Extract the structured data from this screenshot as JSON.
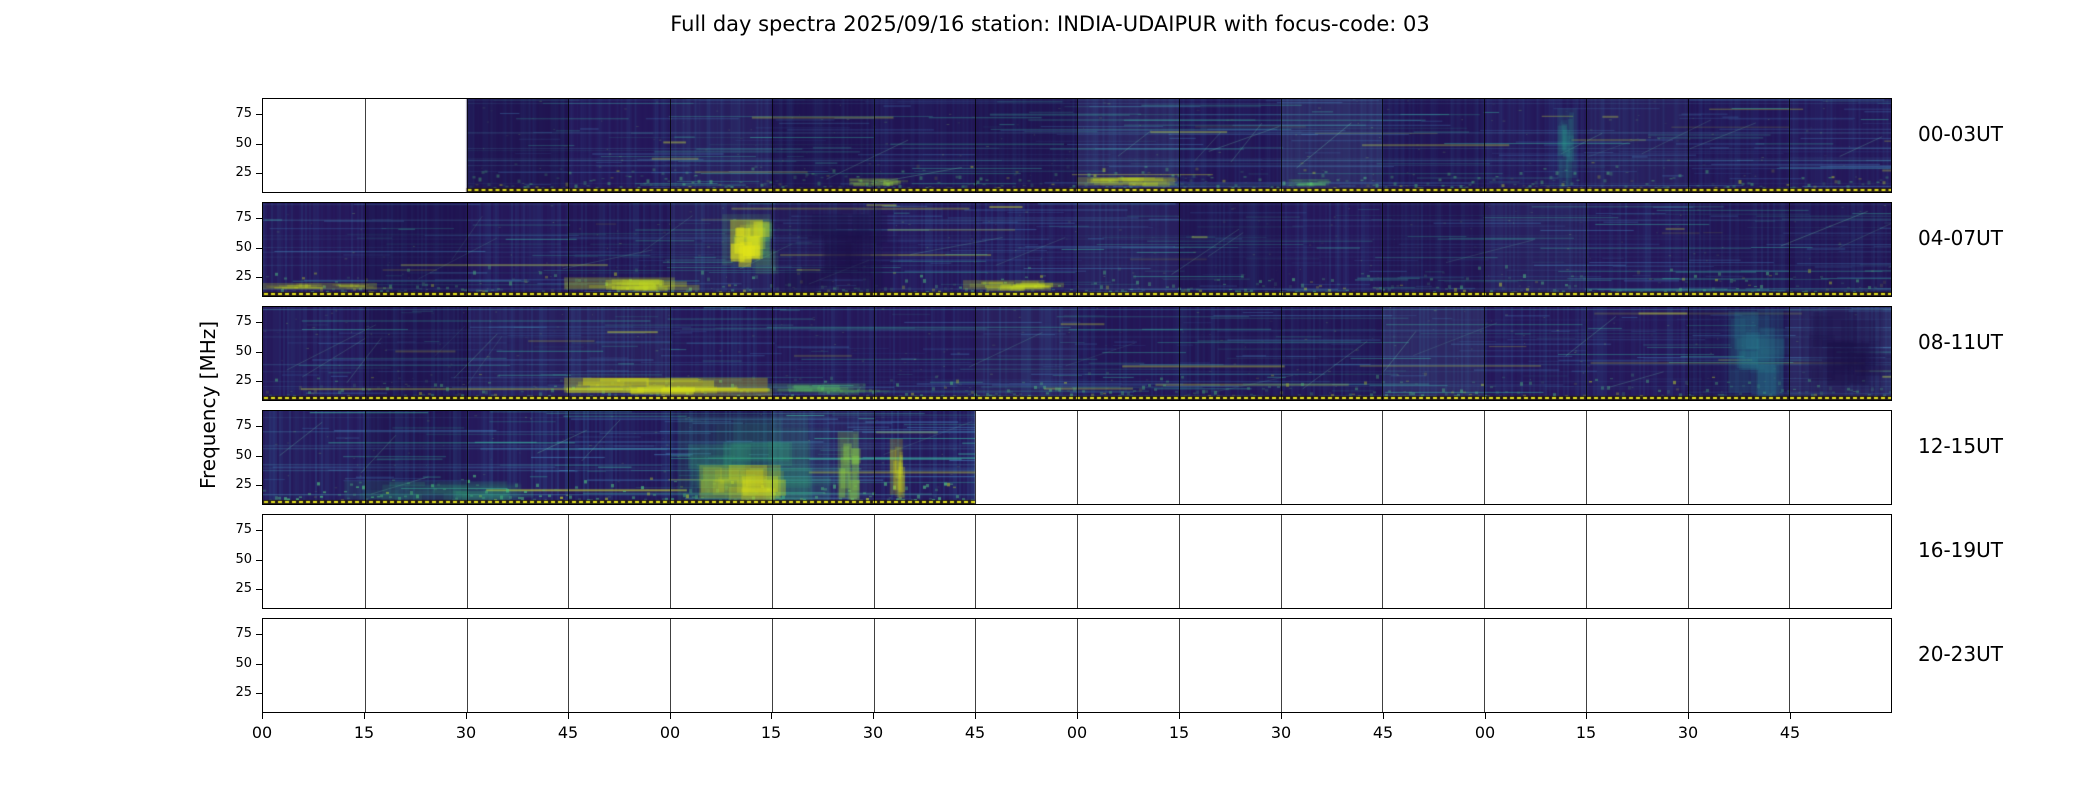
{
  "title": "Full day spectra 2025/09/16 station: INDIA-UDAIPUR with focus-code: 03",
  "chart_data": {
    "type": "heatmap",
    "title": "Full day spectra 2025/09/16 station: INDIA-UDAIPUR with focus-code: 03",
    "date": "2025/09/16",
    "station": "INDIA-UDAIPUR",
    "focus_code": "03",
    "ylabel": "Frequency [MHz]",
    "y_ticks": [
      "75",
      "50",
      "25"
    ],
    "x_ticks": [
      "00",
      "15",
      "30",
      "45",
      "00",
      "15",
      "30",
      "45",
      "00",
      "15",
      "30",
      "45",
      "00",
      "15",
      "30",
      "45"
    ],
    "segments_per_row": 16,
    "minutes_per_segment": 15,
    "colormap": "viridis",
    "legend_position": "none",
    "grid": false,
    "rows": [
      {
        "label": "00-03UT",
        "coverage_segments": [
          [
            2,
            16
          ]
        ],
        "intensity": 1.0,
        "features": [
          {
            "x": 0.36,
            "y": 0.85,
            "w": 0.03,
            "h": 0.08,
            "color": "#9fda3a",
            "alpha": 0.45
          },
          {
            "x": 0.5,
            "y": 0.84,
            "w": 0.06,
            "h": 0.09,
            "color": "#c9e11f",
            "alpha": 0.5
          },
          {
            "x": 0.63,
            "y": 0.86,
            "w": 0.025,
            "h": 0.07,
            "color": "#5ec962",
            "alpha": 0.4
          },
          {
            "x": 0.795,
            "y": 0.1,
            "w": 0.012,
            "h": 0.75,
            "color": "#2a9d8f",
            "alpha": 0.3
          }
        ]
      },
      {
        "label": "04-07UT",
        "coverage_segments": [
          [
            0,
            16
          ]
        ],
        "intensity": 1.0,
        "features": [
          {
            "x": 0.282,
            "y": 0.12,
            "w": 0.03,
            "h": 0.55,
            "color": "#5ec962",
            "alpha": 0.3
          },
          {
            "x": 0.287,
            "y": 0.18,
            "w": 0.02,
            "h": 0.42,
            "color": "#e2e418",
            "alpha": 0.85
          },
          {
            "x": 0.315,
            "y": 0.02,
            "w": 0.065,
            "h": 0.96,
            "color": "#1c1048",
            "alpha": 0.5
          },
          {
            "x": 0.0,
            "y": 0.86,
            "w": 0.07,
            "h": 0.07,
            "color": "#c9e11f",
            "alpha": 0.5
          },
          {
            "x": 0.185,
            "y": 0.8,
            "w": 0.068,
            "h": 0.13,
            "color": "#c9e11f",
            "alpha": 0.6
          },
          {
            "x": 0.43,
            "y": 0.83,
            "w": 0.05,
            "h": 0.1,
            "color": "#c9e11f",
            "alpha": 0.55
          }
        ]
      },
      {
        "label": "08-11UT",
        "coverage_segments": [
          [
            0,
            16
          ]
        ],
        "intensity": 1.0,
        "features": [
          {
            "x": 0.185,
            "y": 0.76,
            "w": 0.125,
            "h": 0.16,
            "color": "#d8e219",
            "alpha": 0.7
          },
          {
            "x": 0.31,
            "y": 0.82,
            "w": 0.06,
            "h": 0.1,
            "color": "#5ec962",
            "alpha": 0.4
          },
          {
            "x": 0.9,
            "y": 0.04,
            "w": 0.034,
            "h": 0.88,
            "color": "#27808e",
            "alpha": 0.45
          },
          {
            "x": 0.945,
            "y": 0.02,
            "w": 0.05,
            "h": 0.95,
            "color": "#1c1048",
            "alpha": 0.45
          }
        ]
      },
      {
        "label": "12-15UT",
        "coverage_segments": [
          [
            0,
            7
          ]
        ],
        "intensity": 1.45,
        "features": [
          {
            "x": 0.255,
            "y": 0.04,
            "w": 0.08,
            "h": 0.92,
            "color": "#35b779",
            "alpha": 0.28
          },
          {
            "x": 0.268,
            "y": 0.58,
            "w": 0.05,
            "h": 0.36,
            "color": "#d8e219",
            "alpha": 0.55
          },
          {
            "x": 0.353,
            "y": 0.22,
            "w": 0.013,
            "h": 0.72,
            "color": "#8fd744",
            "alpha": 0.5
          },
          {
            "x": 0.385,
            "y": 0.3,
            "w": 0.008,
            "h": 0.6,
            "color": "#d8e219",
            "alpha": 0.45
          },
          {
            "x": 0.05,
            "y": 0.75,
            "w": 0.1,
            "h": 0.2,
            "color": "#35b779",
            "alpha": 0.25
          }
        ]
      },
      {
        "label": "16-19UT",
        "coverage_segments": [],
        "intensity": 1.0,
        "features": []
      },
      {
        "label": "20-23UT",
        "coverage_segments": [],
        "intensity": 1.0,
        "features": []
      }
    ]
  },
  "colors": {
    "background": "#ffffff",
    "axis": "#000000",
    "spectrogram_base": "#251457",
    "bright_yellow": "#fde725",
    "teal": "#21918c",
    "dotted_line": "#e2e020"
  }
}
